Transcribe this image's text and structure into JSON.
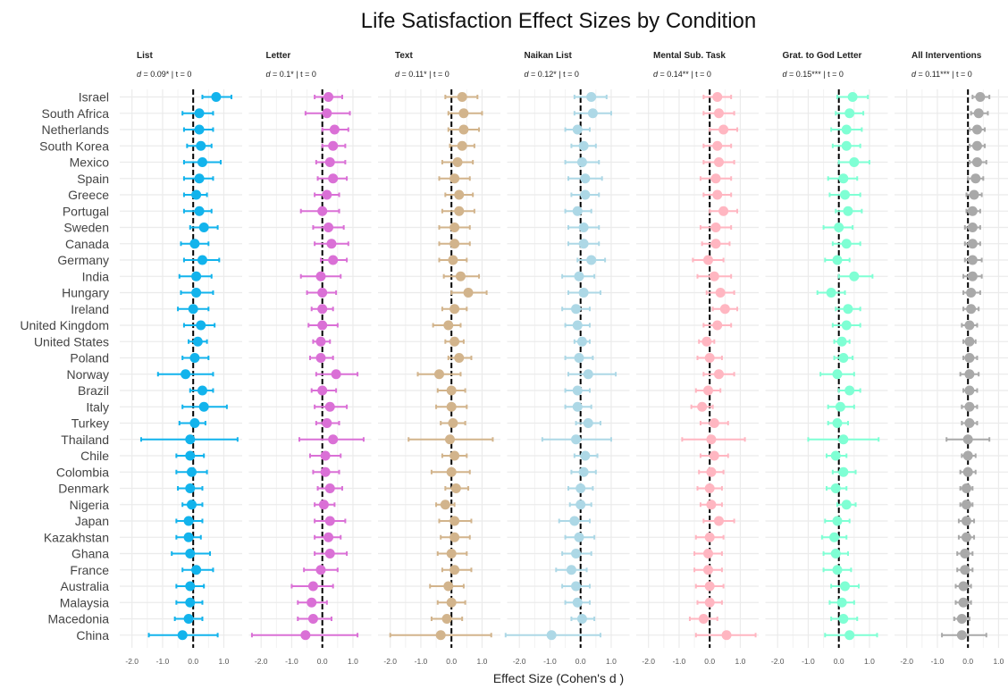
{
  "chart_data": {
    "type": "forest",
    "title": "Life Satisfaction Effect Sizes by Condition",
    "xlabel": "Effect Size (Cohen's d )",
    "xlim": [
      -2.4,
      1.6
    ],
    "x_ticks": [
      -2.0,
      -1.0,
      0.0,
      1.0
    ],
    "x_tick_labels": [
      "-2.0",
      "-1.0",
      "0.0",
      "1.0"
    ],
    "minor_x_ticks": [
      -1.5,
      -0.5,
      0.5
    ],
    "reference_line": 0,
    "grid": true,
    "countries": [
      "Israel",
      "South Africa",
      "Netherlands",
      "South Korea",
      "Mexico",
      "Spain",
      "Greece",
      "Portugal",
      "Sweden",
      "Canada",
      "Germany",
      "India",
      "Hungary",
      "Ireland",
      "United Kingdom",
      "United States",
      "Poland",
      "Norway",
      "Brazil",
      "Italy",
      "Turkey",
      "Thailand",
      "Chile",
      "Colombia",
      "Denmark",
      "Nigeria",
      "Japan",
      "Kazakhstan",
      "Ghana",
      "France",
      "Australia",
      "Malaysia",
      "Macedonia",
      "China"
    ],
    "facets": [
      {
        "name": "List",
        "stat_prefix": "d",
        "stat_suffix": " = 0.09* | t = 0",
        "color": "#12B3EC",
        "estimates": [
          0.75,
          0.2,
          0.2,
          0.25,
          0.3,
          0.2,
          0.1,
          0.2,
          0.35,
          0.05,
          0.3,
          0.1,
          0.1,
          0.0,
          0.25,
          0.15,
          0.05,
          -0.25,
          0.3,
          0.35,
          0.05,
          -0.1,
          -0.1,
          -0.05,
          -0.1,
          -0.05,
          -0.15,
          -0.15,
          -0.1,
          0.1,
          -0.1,
          -0.1,
          -0.15,
          -0.35
        ],
        "lower": [
          0.3,
          -0.35,
          -0.3,
          -0.2,
          -0.3,
          -0.3,
          -0.3,
          -0.3,
          -0.1,
          -0.4,
          -0.3,
          -0.45,
          -0.4,
          -0.5,
          -0.3,
          -0.15,
          -0.35,
          -1.15,
          -0.1,
          -0.35,
          -0.45,
          -1.7,
          -0.55,
          -0.55,
          -0.5,
          -0.35,
          -0.55,
          -0.55,
          -0.7,
          -0.35,
          -0.55,
          -0.55,
          -0.6,
          -1.45
        ],
        "upper": [
          1.25,
          0.65,
          0.65,
          0.6,
          0.9,
          0.65,
          0.45,
          0.6,
          0.8,
          0.5,
          0.85,
          0.6,
          0.65,
          0.5,
          0.7,
          0.45,
          0.5,
          0.65,
          0.65,
          1.1,
          0.4,
          1.45,
          0.35,
          0.45,
          0.3,
          0.3,
          0.3,
          0.25,
          0.55,
          0.65,
          0.35,
          0.3,
          0.3,
          0.8
        ]
      },
      {
        "name": "Letter",
        "stat_prefix": "d",
        "stat_suffix": " = 0.1* | t = 0",
        "color": "#DA70D6",
        "estimates": [
          0.2,
          0.15,
          0.4,
          0.35,
          0.25,
          0.35,
          0.15,
          0.0,
          0.2,
          0.3,
          0.35,
          -0.05,
          0.0,
          0.0,
          0.0,
          -0.05,
          -0.05,
          0.45,
          0.0,
          0.25,
          0.15,
          0.35,
          0.1,
          0.1,
          0.25,
          0.05,
          0.25,
          0.2,
          0.25,
          -0.05,
          -0.3,
          -0.35,
          -0.3,
          -0.55
        ],
        "lower": [
          -0.25,
          -0.55,
          0.0,
          0.0,
          -0.2,
          -0.15,
          -0.25,
          -0.7,
          -0.3,
          -0.25,
          -0.05,
          -0.7,
          -0.5,
          -0.35,
          -0.45,
          -0.3,
          -0.4,
          -0.2,
          -0.35,
          -0.25,
          -0.2,
          -0.75,
          -0.4,
          -0.3,
          -0.15,
          -0.25,
          -0.25,
          -0.25,
          -0.25,
          -0.6,
          -1.0,
          -0.8,
          -0.8,
          -2.3
        ],
        "upper": [
          0.65,
          0.9,
          0.85,
          0.75,
          0.75,
          0.8,
          0.55,
          0.55,
          0.7,
          0.85,
          0.8,
          0.6,
          0.45,
          0.35,
          0.5,
          0.25,
          0.35,
          1.15,
          0.45,
          0.8,
          0.55,
          1.35,
          0.6,
          0.55,
          0.65,
          0.4,
          0.75,
          0.6,
          0.8,
          0.5,
          0.35,
          0.15,
          0.3,
          1.15
        ]
      },
      {
        "name": "Text",
        "stat_prefix": "d",
        "stat_suffix": " = 0.11* | t = 0",
        "color": "#D2B48C",
        "estimates": [
          0.35,
          0.4,
          0.4,
          0.35,
          0.2,
          0.1,
          0.25,
          0.25,
          0.1,
          0.1,
          0.05,
          0.3,
          0.55,
          0.1,
          -0.1,
          0.1,
          0.25,
          -0.4,
          0.0,
          0.0,
          0.05,
          -0.05,
          0.1,
          0.0,
          0.15,
          -0.2,
          0.1,
          0.1,
          0.0,
          0.1,
          -0.1,
          0.0,
          -0.15,
          -0.35
        ],
        "lower": [
          -0.2,
          -0.1,
          -0.1,
          -0.05,
          -0.3,
          -0.4,
          -0.2,
          -0.3,
          -0.4,
          -0.4,
          -0.4,
          -0.25,
          0.0,
          -0.3,
          -0.6,
          -0.2,
          -0.1,
          -1.1,
          -0.45,
          -0.5,
          -0.35,
          -1.4,
          -0.3,
          -0.65,
          -0.2,
          -0.5,
          -0.4,
          -0.35,
          -0.45,
          -0.3,
          -0.7,
          -0.45,
          -0.65,
          -2.0
        ],
        "upper": [
          0.85,
          1.0,
          0.9,
          0.75,
          0.7,
          0.6,
          0.7,
          0.75,
          0.6,
          0.6,
          0.5,
          0.9,
          1.15,
          0.5,
          0.3,
          0.4,
          0.65,
          0.3,
          0.45,
          0.5,
          0.45,
          1.35,
          0.5,
          0.6,
          0.55,
          0.1,
          0.65,
          0.6,
          0.5,
          0.65,
          0.4,
          0.45,
          0.35,
          1.3
        ]
      },
      {
        "name": "Naikan List",
        "stat_prefix": "d",
        "stat_suffix": " = 0.12* | t = 0",
        "color": "#ADD8E6",
        "estimates": [
          0.35,
          0.4,
          -0.1,
          0.1,
          0.05,
          0.15,
          0.15,
          -0.1,
          0.1,
          0.1,
          0.35,
          -0.05,
          0.1,
          -0.15,
          -0.1,
          0.05,
          -0.05,
          0.25,
          -0.1,
          -0.1,
          0.25,
          -0.15,
          0.15,
          0.1,
          0.0,
          0.0,
          -0.2,
          -0.05,
          -0.15,
          -0.3,
          -0.15,
          -0.1,
          0.05,
          -0.95
        ],
        "lower": [
          -0.2,
          -0.2,
          -0.5,
          -0.3,
          -0.5,
          -0.4,
          -0.3,
          -0.5,
          -0.4,
          -0.4,
          -0.1,
          -0.6,
          -0.4,
          -0.6,
          -0.5,
          -0.2,
          -0.5,
          -0.4,
          -0.5,
          -0.5,
          -0.15,
          -1.25,
          -0.2,
          -0.3,
          -0.4,
          -0.35,
          -0.7,
          -0.5,
          -0.6,
          -0.8,
          -0.6,
          -0.5,
          -0.3,
          -2.45
        ],
        "upper": [
          0.85,
          1.0,
          0.3,
          0.5,
          0.6,
          0.7,
          0.6,
          0.35,
          0.6,
          0.6,
          0.8,
          0.45,
          0.65,
          0.3,
          0.3,
          0.3,
          0.4,
          1.15,
          0.3,
          0.35,
          0.65,
          1.0,
          0.55,
          0.5,
          0.4,
          0.35,
          0.3,
          0.45,
          0.35,
          0.2,
          0.3,
          0.3,
          0.45,
          0.65
        ]
      },
      {
        "name": "Mental Sub. Task",
        "stat_prefix": "d",
        "stat_suffix": " = 0.14** | t = 0",
        "color": "#FFB6C1",
        "estimates": [
          0.25,
          0.3,
          0.45,
          0.25,
          0.3,
          0.2,
          0.25,
          0.45,
          0.2,
          0.2,
          -0.05,
          0.15,
          0.35,
          0.5,
          0.25,
          -0.1,
          0.0,
          0.3,
          -0.05,
          -0.25,
          0.15,
          0.05,
          0.15,
          0.05,
          0.0,
          0.05,
          0.3,
          0.0,
          -0.05,
          -0.05,
          0.0,
          0.0,
          -0.2,
          0.55
        ],
        "lower": [
          -0.2,
          -0.2,
          0.0,
          -0.2,
          -0.2,
          -0.3,
          -0.2,
          0.0,
          -0.3,
          -0.25,
          -0.55,
          -0.4,
          -0.1,
          0.1,
          -0.2,
          -0.35,
          -0.4,
          -0.2,
          -0.45,
          -0.6,
          -0.3,
          -0.9,
          -0.3,
          -0.35,
          -0.4,
          -0.3,
          -0.2,
          -0.45,
          -0.5,
          -0.5,
          -0.45,
          -0.4,
          -0.65,
          -0.45
        ],
        "upper": [
          0.7,
          0.8,
          0.9,
          0.7,
          0.8,
          0.7,
          0.7,
          0.9,
          0.7,
          0.65,
          0.45,
          0.7,
          0.8,
          0.9,
          0.7,
          0.15,
          0.4,
          0.8,
          0.35,
          0.1,
          0.6,
          1.15,
          0.6,
          0.45,
          0.4,
          0.4,
          0.8,
          0.45,
          0.4,
          0.4,
          0.45,
          0.4,
          0.25,
          1.5
        ]
      },
      {
        "name": "Grat. to God Letter",
        "stat_prefix": "d",
        "stat_suffix": " = 0.15*** | t = 0",
        "color": "#7FFFD4",
        "estimates": [
          0.45,
          0.35,
          0.25,
          0.25,
          0.5,
          0.15,
          0.2,
          0.3,
          0.0,
          0.25,
          -0.05,
          0.5,
          -0.25,
          0.3,
          0.25,
          0.1,
          0.15,
          -0.05,
          0.35,
          0.05,
          -0.05,
          0.15,
          -0.1,
          0.15,
          -0.1,
          0.25,
          -0.05,
          -0.15,
          -0.1,
          -0.05,
          0.2,
          0.1,
          0.15,
          0.35
        ],
        "lower": [
          -0.05,
          -0.1,
          -0.25,
          -0.2,
          0.0,
          -0.35,
          -0.3,
          -0.1,
          -0.5,
          -0.2,
          -0.45,
          0.0,
          -0.7,
          -0.1,
          -0.2,
          -0.15,
          -0.15,
          -0.6,
          0.0,
          -0.35,
          -0.35,
          -1.0,
          -0.4,
          -0.2,
          -0.4,
          -0.05,
          -0.45,
          -0.55,
          -0.5,
          -0.5,
          -0.25,
          -0.3,
          -0.25,
          -0.45
        ],
        "upper": [
          0.95,
          0.8,
          0.75,
          0.7,
          1.0,
          0.6,
          0.7,
          0.75,
          0.45,
          0.7,
          0.35,
          1.1,
          0.2,
          0.7,
          0.7,
          0.35,
          0.45,
          0.5,
          0.7,
          0.5,
          0.3,
          1.3,
          0.25,
          0.55,
          0.25,
          0.55,
          0.35,
          0.25,
          0.3,
          0.4,
          0.65,
          0.5,
          0.6,
          1.25
        ]
      },
      {
        "name": "All Interventions",
        "stat_prefix": "d",
        "stat_suffix": " = 0.11*** | t = 0",
        "color": "#A9A9A9",
        "estimates": [
          0.4,
          0.35,
          0.3,
          0.3,
          0.3,
          0.25,
          0.2,
          0.15,
          0.15,
          0.15,
          0.15,
          0.15,
          0.1,
          0.1,
          0.05,
          0.05,
          0.05,
          0.05,
          0.05,
          0.05,
          0.05,
          0.0,
          0.0,
          0.0,
          -0.05,
          -0.05,
          -0.05,
          -0.05,
          -0.1,
          -0.1,
          -0.15,
          -0.15,
          -0.2,
          -0.2
        ],
        "lower": [
          0.15,
          0.1,
          0.05,
          0.05,
          0.05,
          0.0,
          -0.05,
          -0.05,
          -0.1,
          -0.1,
          -0.1,
          -0.15,
          -0.15,
          -0.15,
          -0.2,
          -0.15,
          -0.15,
          -0.25,
          -0.15,
          -0.2,
          -0.2,
          -0.7,
          -0.2,
          -0.25,
          -0.25,
          -0.25,
          -0.3,
          -0.3,
          -0.35,
          -0.35,
          -0.4,
          -0.4,
          -0.45,
          -0.85
        ],
        "upper": [
          0.7,
          0.65,
          0.55,
          0.55,
          0.6,
          0.5,
          0.45,
          0.4,
          0.4,
          0.4,
          0.45,
          0.45,
          0.4,
          0.35,
          0.3,
          0.25,
          0.3,
          0.35,
          0.3,
          0.3,
          0.3,
          0.7,
          0.25,
          0.25,
          0.15,
          0.15,
          0.2,
          0.2,
          0.15,
          0.15,
          0.1,
          0.1,
          0.05,
          0.6
        ]
      }
    ]
  }
}
